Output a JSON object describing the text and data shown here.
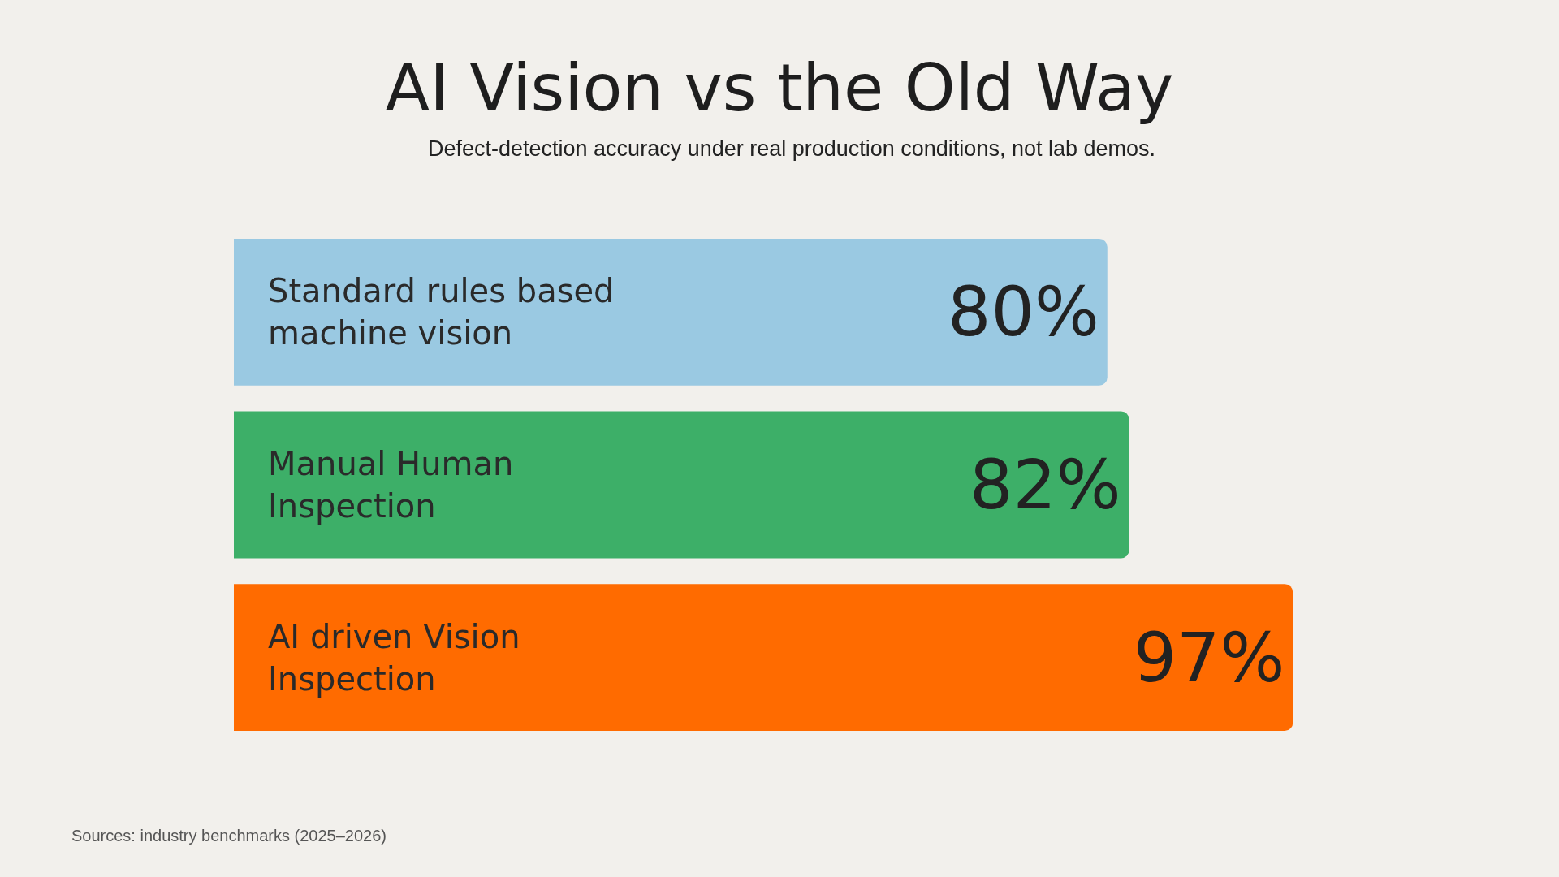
{
  "chart_data": {
    "type": "bar",
    "orientation": "horizontal",
    "title": "AI Vision vs the Old Way",
    "subtitle": "Defect-detection accuracy under real production conditions, not lab demos.",
    "categories": [
      "Standard rules based machine vision",
      "Manual Human Inspection",
      "AI driven Vision Inspection"
    ],
    "values": [
      80,
      82,
      97
    ],
    "colors": [
      "#9ac9e2",
      "#3daf68",
      "#ff6b00"
    ],
    "value_labels": [
      "80%",
      "82%",
      "97%"
    ],
    "tick_labels": false,
    "grid": false,
    "legend": false,
    "annotations": [
      "Sources: industry benchmarks (2025–2026)"
    ]
  }
}
